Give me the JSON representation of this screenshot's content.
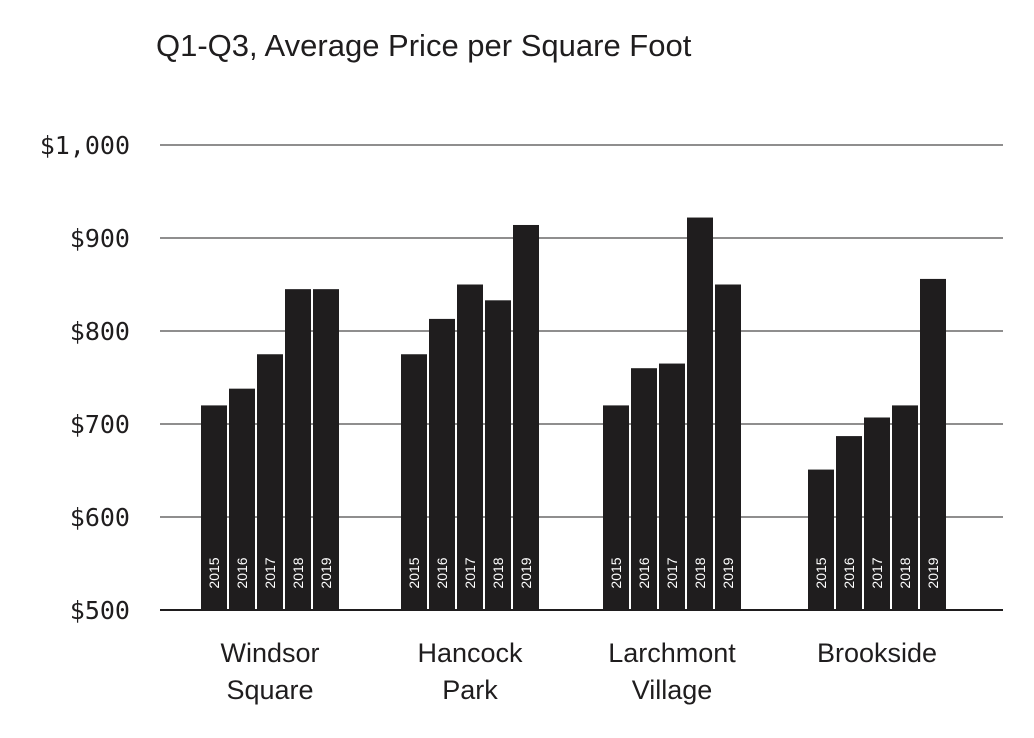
{
  "colors": {
    "bar": "#1f1d1e",
    "grid": "#1f1d1e",
    "background": "#ffffff",
    "bar_label": "#ffffff"
  },
  "chart_data": {
    "type": "bar",
    "title": "Q1-Q3, Average Price per Square Foot",
    "xlabel": "",
    "ylabel": "",
    "ylim": [
      500,
      1000
    ],
    "yticks": [
      500,
      600,
      700,
      800,
      900,
      1000
    ],
    "ytick_labels": [
      "$500",
      "$600",
      "$700",
      "$800",
      "$900",
      "$1,000"
    ],
    "grid": true,
    "categories": [
      {
        "lines": [
          "Windsor",
          "Square"
        ]
      },
      {
        "lines": [
          "Hancock",
          "Park"
        ]
      },
      {
        "lines": [
          "Larchmont",
          "Village"
        ]
      },
      {
        "lines": [
          "Brookside"
        ]
      }
    ],
    "series": [
      {
        "name": "2015",
        "values": [
          720,
          775,
          720,
          651
        ]
      },
      {
        "name": "2016",
        "values": [
          738,
          813,
          760,
          687
        ]
      },
      {
        "name": "2017",
        "values": [
          775,
          850,
          765,
          707
        ]
      },
      {
        "name": "2018",
        "values": [
          845,
          833,
          922,
          720
        ]
      },
      {
        "name": "2019",
        "values": [
          845,
          914,
          850,
          856
        ]
      }
    ]
  }
}
